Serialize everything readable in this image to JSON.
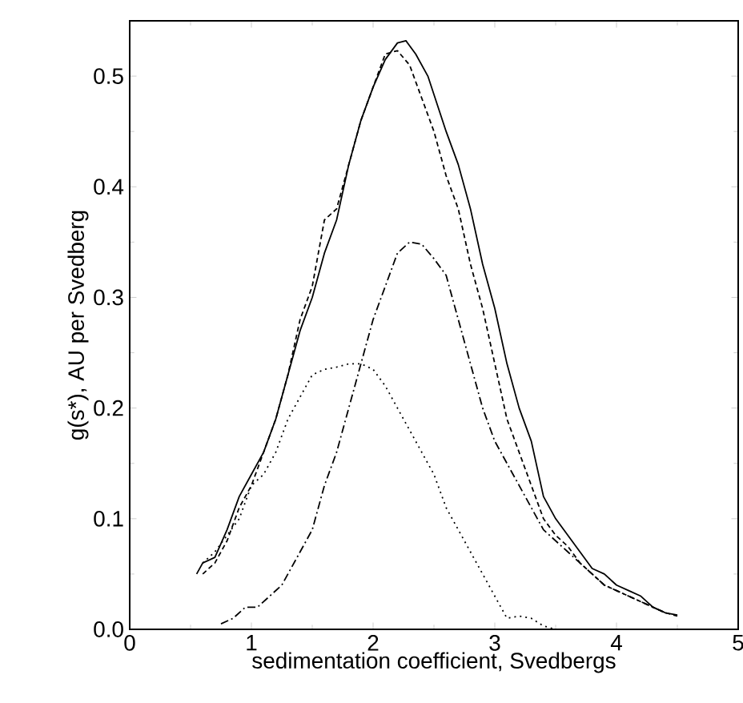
{
  "chart_data": {
    "type": "line",
    "xlabel": "sedimentation coefficient, Svedbergs",
    "ylabel": "g(s*), AU per Svedberg",
    "xlim": [
      0,
      5
    ],
    "ylim": [
      0,
      0.55
    ],
    "xticks": [
      0,
      1,
      2,
      3,
      4,
      5
    ],
    "yticks": [
      {
        "value": 0,
        "label": "0.0"
      },
      0.1,
      0.2,
      0.3,
      0.4,
      0.5
    ],
    "marker": "none",
    "series": [
      {
        "color": "#000000",
        "line_style": "solid",
        "x": [
          0.55,
          0.6,
          0.7,
          0.8,
          0.9,
          1.0,
          1.1,
          1.2,
          1.3,
          1.4,
          1.5,
          1.6,
          1.7,
          1.8,
          1.9,
          2.0,
          2.1,
          2.2,
          2.27,
          2.35,
          2.45,
          2.6,
          2.7,
          2.8,
          2.9,
          3.0,
          3.1,
          3.2,
          3.3,
          3.4,
          3.5,
          3.6,
          3.7,
          3.8,
          3.9,
          4.0,
          4.1,
          4.2,
          4.3,
          4.4,
          4.5
        ],
        "values": [
          0.05,
          0.06,
          0.065,
          0.09,
          0.12,
          0.14,
          0.16,
          0.19,
          0.23,
          0.27,
          0.3,
          0.34,
          0.37,
          0.42,
          0.46,
          0.49,
          0.515,
          0.53,
          0.532,
          0.52,
          0.5,
          0.45,
          0.42,
          0.38,
          0.33,
          0.29,
          0.24,
          0.2,
          0.17,
          0.12,
          0.1,
          0.085,
          0.07,
          0.055,
          0.05,
          0.04,
          0.035,
          0.03,
          0.02,
          0.015,
          0.013
        ]
      },
      {
        "color": "#000000",
        "line_style": "dashed",
        "x": [
          0.6,
          0.7,
          0.8,
          0.9,
          1.0,
          1.1,
          1.2,
          1.3,
          1.4,
          1.5,
          1.6,
          1.7,
          1.8,
          1.9,
          2.0,
          2.1,
          2.2,
          2.3,
          2.4,
          2.5,
          2.6,
          2.7,
          2.8,
          2.9,
          3.0,
          3.1,
          3.2,
          3.3,
          3.4,
          3.5,
          3.6,
          3.7,
          3.8,
          3.9,
          4.0,
          4.1,
          4.2,
          4.3,
          4.4,
          4.5
        ],
        "values": [
          0.05,
          0.06,
          0.08,
          0.11,
          0.13,
          0.16,
          0.19,
          0.23,
          0.28,
          0.31,
          0.37,
          0.38,
          0.42,
          0.46,
          0.49,
          0.52,
          0.523,
          0.51,
          0.48,
          0.45,
          0.41,
          0.38,
          0.33,
          0.29,
          0.24,
          0.19,
          0.16,
          0.13,
          0.1,
          0.085,
          0.075,
          0.06,
          0.05,
          0.04,
          0.035,
          0.03,
          0.025,
          0.02,
          0.015,
          0.012
        ]
      },
      {
        "color": "#000000",
        "line_style": "dashdot",
        "x": [
          0.75,
          0.85,
          0.95,
          1.05,
          1.15,
          1.25,
          1.4,
          1.5,
          1.6,
          1.7,
          1.8,
          1.9,
          2.0,
          2.1,
          2.2,
          2.3,
          2.4,
          2.5,
          2.6,
          2.7,
          2.8,
          2.9,
          3.0,
          3.1,
          3.2,
          3.3,
          3.4,
          3.5,
          3.6,
          3.7,
          3.8,
          3.9,
          4.0,
          4.2,
          4.3,
          4.4
        ],
        "values": [
          0.005,
          0.01,
          0.02,
          0.02,
          0.03,
          0.04,
          0.07,
          0.09,
          0.13,
          0.16,
          0.2,
          0.24,
          0.28,
          0.31,
          0.34,
          0.35,
          0.348,
          0.335,
          0.32,
          0.28,
          0.24,
          0.2,
          0.17,
          0.15,
          0.13,
          0.11,
          0.09,
          0.08,
          0.07,
          0.06,
          0.05,
          0.04,
          0.035,
          0.025,
          0.02,
          0.015
        ]
      },
      {
        "color": "#000000",
        "line_style": "dotted",
        "x": [
          0.6,
          0.7,
          0.8,
          0.9,
          1.0,
          1.1,
          1.2,
          1.3,
          1.4,
          1.5,
          1.6,
          1.7,
          1.8,
          1.9,
          2.0,
          2.1,
          2.2,
          2.3,
          2.4,
          2.5,
          2.6,
          2.7,
          2.8,
          2.9,
          3.0,
          3.1,
          3.2,
          3.3,
          3.4,
          3.5,
          3.7
        ],
        "values": [
          0.06,
          0.07,
          0.085,
          0.1,
          0.13,
          0.14,
          0.16,
          0.19,
          0.21,
          0.23,
          0.235,
          0.237,
          0.24,
          0.24,
          0.235,
          0.22,
          0.2,
          0.18,
          0.16,
          0.14,
          0.11,
          0.09,
          0.07,
          0.05,
          0.03,
          0.01,
          0.012,
          0.01,
          0.003,
          0.0,
          0.0
        ]
      }
    ]
  }
}
